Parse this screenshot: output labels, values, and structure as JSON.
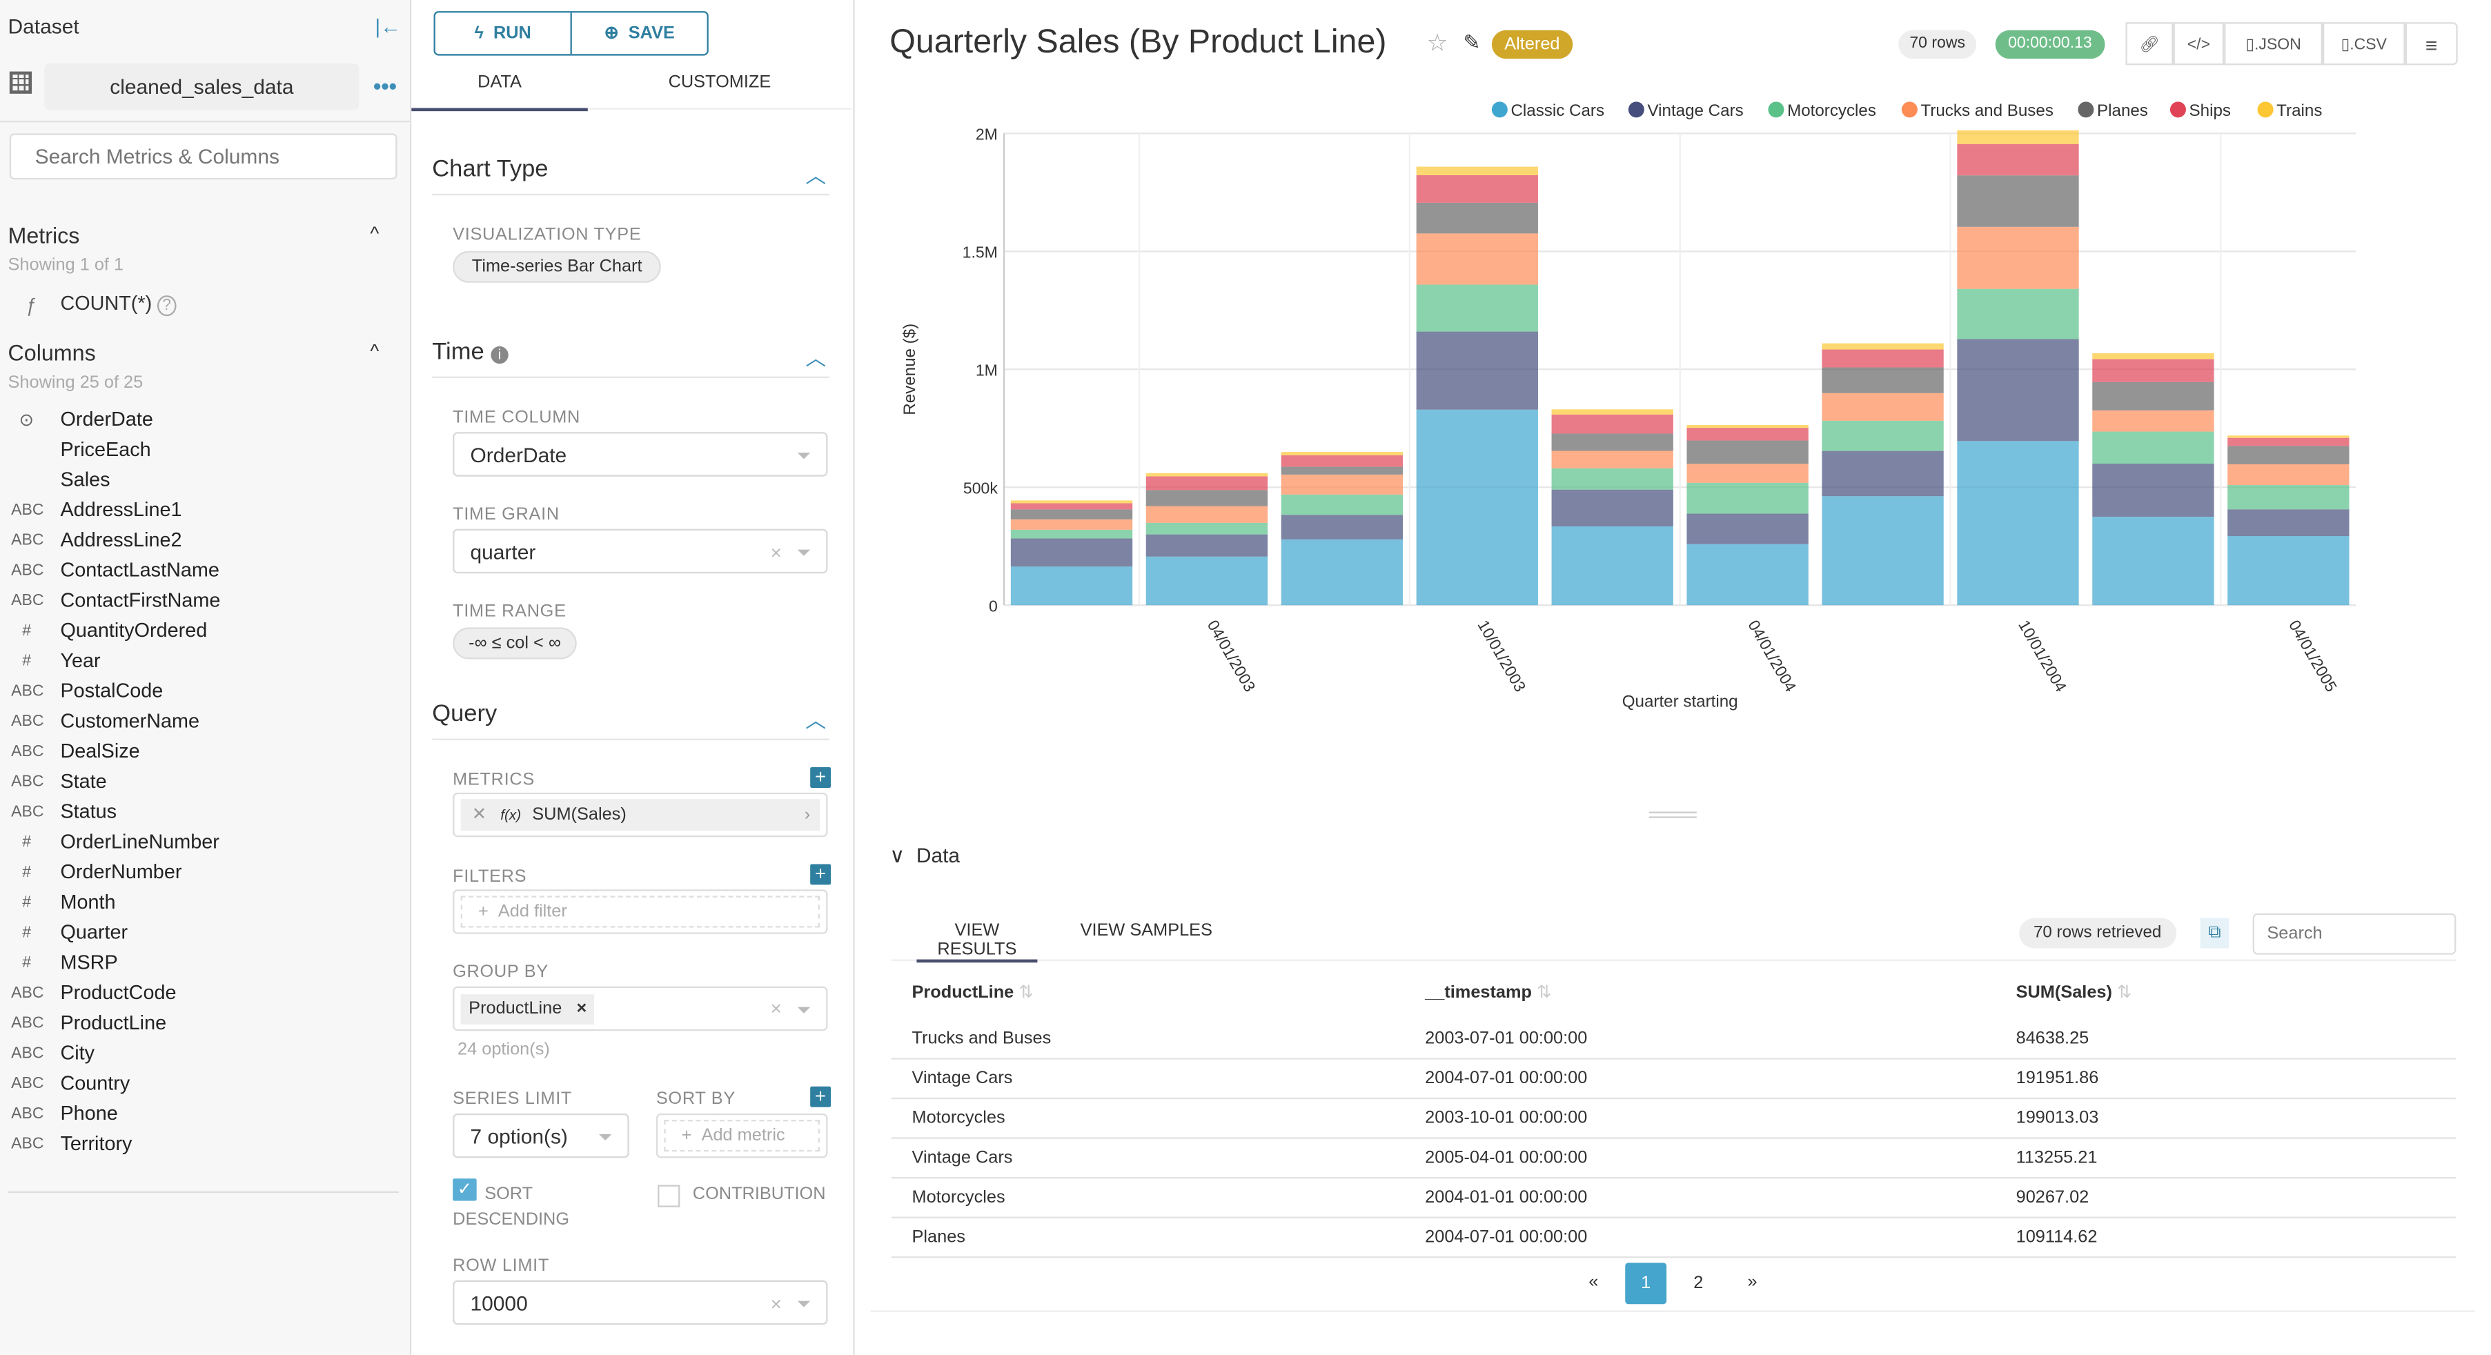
{
  "sidebar": {
    "title": "Dataset",
    "dataset_name": "cleaned_sales_data",
    "search_placeholder": "Search Metrics & Columns",
    "metrics_title": "Metrics",
    "metrics_count": "Showing 1 of 1",
    "metrics": [
      {
        "type": "ƒ",
        "name": "COUNT(*)"
      }
    ],
    "columns_title": "Columns",
    "columns_count": "Showing 25 of 25",
    "columns": [
      {
        "type": "clock",
        "name": "OrderDate"
      },
      {
        "type": "",
        "name": "PriceEach"
      },
      {
        "type": "",
        "name": "Sales"
      },
      {
        "type": "ABC",
        "name": "AddressLine1"
      },
      {
        "type": "ABC",
        "name": "AddressLine2"
      },
      {
        "type": "ABC",
        "name": "ContactLastName"
      },
      {
        "type": "ABC",
        "name": "ContactFirstName"
      },
      {
        "type": "#",
        "name": "QuantityOrdered"
      },
      {
        "type": "#",
        "name": "Year"
      },
      {
        "type": "ABC",
        "name": "PostalCode"
      },
      {
        "type": "ABC",
        "name": "CustomerName"
      },
      {
        "type": "ABC",
        "name": "DealSize"
      },
      {
        "type": "ABC",
        "name": "State"
      },
      {
        "type": "ABC",
        "name": "Status"
      },
      {
        "type": "#",
        "name": "OrderLineNumber"
      },
      {
        "type": "#",
        "name": "OrderNumber"
      },
      {
        "type": "#",
        "name": "Month"
      },
      {
        "type": "#",
        "name": "Quarter"
      },
      {
        "type": "#",
        "name": "MSRP"
      },
      {
        "type": "ABC",
        "name": "ProductCode"
      },
      {
        "type": "ABC",
        "name": "ProductLine"
      },
      {
        "type": "ABC",
        "name": "City"
      },
      {
        "type": "ABC",
        "name": "Country"
      },
      {
        "type": "ABC",
        "name": "Phone"
      },
      {
        "type": "ABC",
        "name": "Territory"
      }
    ]
  },
  "controls": {
    "run": "RUN",
    "save": "SAVE",
    "tabs": [
      "DATA",
      "CUSTOMIZE"
    ],
    "chart_type_title": "Chart Type",
    "viz_type_label": "VISUALIZATION TYPE",
    "viz_type": "Time-series Bar Chart",
    "time_title": "Time",
    "time_column_label": "TIME COLUMN",
    "time_column": "OrderDate",
    "time_grain_label": "TIME GRAIN",
    "time_grain": "quarter",
    "time_range_label": "TIME RANGE",
    "time_range": "-∞ ≤ col < ∞",
    "query_title": "Query",
    "metrics_label": "METRICS",
    "metric": "SUM(Sales)",
    "metric_prefix": "f(x)",
    "filters_label": "FILTERS",
    "add_filter": "Add filter",
    "group_by_label": "GROUP BY",
    "group_by_tag": "ProductLine",
    "group_by_hint": "24 option(s)",
    "series_limit_label": "SERIES LIMIT",
    "series_limit": "7 option(s)",
    "sort_by_label": "SORT BY",
    "add_metric": "Add metric",
    "sort_desc_label": "SORT DESCENDING",
    "sort_desc_checked": true,
    "contribution_label": "CONTRIBUTION",
    "contribution_checked": false,
    "row_limit_label": "ROW LIMIT",
    "row_limit": "10000"
  },
  "header": {
    "title": "Quarterly Sales (By Product Line)",
    "altered": "Altered",
    "rows": "70 rows",
    "timer": "00:00:00.13",
    "json": ".JSON",
    "csv": ".CSV"
  },
  "chart_data": {
    "type": "bar",
    "stacked": true,
    "categories": [
      "2003-01-01",
      "2003-04-01",
      "2003-07-01",
      "2003-10-01",
      "2004-01-01",
      "2004-04-01",
      "2004-07-01",
      "2004-10-01",
      "2005-01-01",
      "2005-04-01"
    ],
    "x_tick_labels": [
      "04/01/2003",
      "10/01/2003",
      "04/01/2004",
      "10/01/2004",
      "04/01/2005"
    ],
    "xlabel": "Quarter starting",
    "ylabel": "Revenue ($)",
    "ylim": [
      0,
      2000000
    ],
    "y_ticks": [
      0,
      500000,
      1000000,
      1500000,
      2000000
    ],
    "y_tick_labels": [
      "0",
      "500k",
      "1M",
      "1.5M",
      "2M"
    ],
    "grid": true,
    "legend_position": "top-right",
    "series": [
      {
        "name": "Classic Cars",
        "color": "#3fa6d0",
        "values": [
          164000,
          206000,
          279000,
          829000,
          334000,
          259000,
          462000,
          696000,
          375000,
          293000
        ]
      },
      {
        "name": "Vintage Cars",
        "color": "#454e7c",
        "values": [
          119000,
          94000,
          104000,
          331000,
          156000,
          129000,
          191952,
          432000,
          225000,
          113255
        ]
      },
      {
        "name": "Motorcycles",
        "color": "#5ac189",
        "values": [
          37000,
          49000,
          86000,
          199013,
          90267,
          131000,
          128000,
          213000,
          136000,
          103000
        ]
      },
      {
        "name": "Trucks and Buses",
        "color": "#fd8c55",
        "values": [
          44000,
          71000,
          84638,
          217000,
          74000,
          80000,
          117000,
          263000,
          90000,
          88000
        ]
      },
      {
        "name": "Planes",
        "color": "#666666",
        "values": [
          42000,
          68000,
          33000,
          130000,
          73000,
          99000,
          109115,
          218000,
          120000,
          78000
        ]
      },
      {
        "name": "Ships",
        "color": "#e04355",
        "values": [
          26000,
          58000,
          49000,
          117000,
          81000,
          54000,
          76000,
          133000,
          97000,
          34000
        ]
      },
      {
        "name": "Trains",
        "color": "#fcc733",
        "values": [
          12000,
          14000,
          14000,
          36000,
          22000,
          12000,
          26000,
          58000,
          25000,
          10000
        ]
      }
    ]
  },
  "data_panel": {
    "title": "Data",
    "tabs": [
      "VIEW RESULTS",
      "VIEW SAMPLES"
    ],
    "rows_retrieved": "70 rows retrieved",
    "search_placeholder": "Search",
    "columns": [
      "ProductLine",
      "__timestamp",
      "SUM(Sales)"
    ],
    "rows": [
      [
        "Trucks and Buses",
        "2003-07-01 00:00:00",
        "84638.25"
      ],
      [
        "Vintage Cars",
        "2004-07-01 00:00:00",
        "191951.86"
      ],
      [
        "Motorcycles",
        "2003-10-01 00:00:00",
        "199013.03"
      ],
      [
        "Vintage Cars",
        "2005-04-01 00:00:00",
        "113255.21"
      ],
      [
        "Motorcycles",
        "2004-01-01 00:00:00",
        "90267.02"
      ],
      [
        "Planes",
        "2004-07-01 00:00:00",
        "109114.62"
      ]
    ],
    "pagination": {
      "prev": "«",
      "pages": [
        "1",
        "2"
      ],
      "current": "1",
      "next": "»"
    }
  }
}
